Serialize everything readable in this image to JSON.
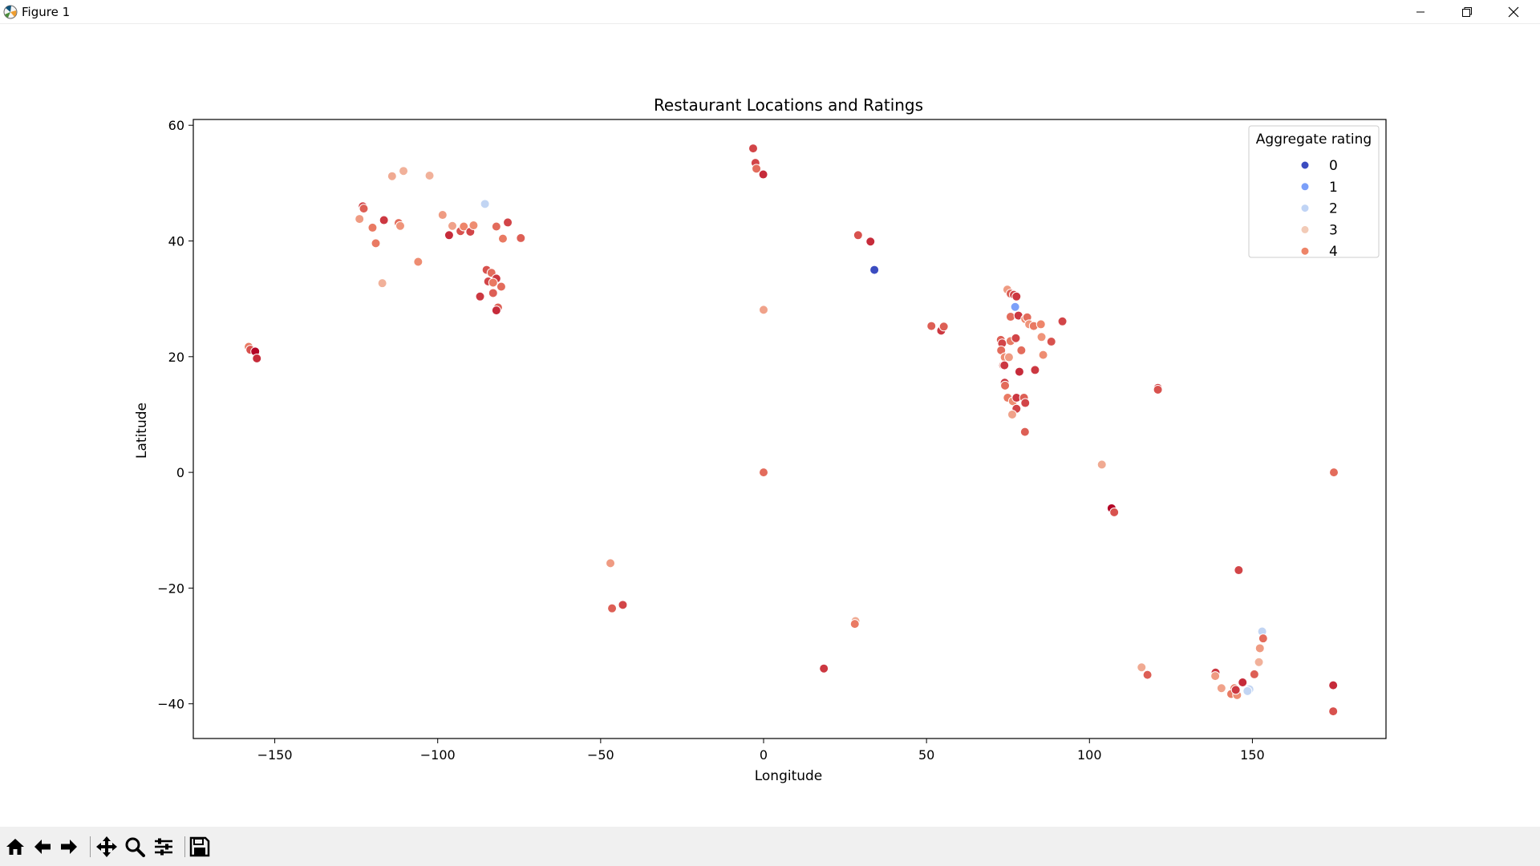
{
  "window": {
    "title": "Figure 1",
    "app_icon": "matplotlib-icon",
    "controls": [
      "minimize-icon",
      "maximize-icon",
      "close-icon"
    ]
  },
  "toolbar": {
    "buttons": [
      "home-icon",
      "back-icon",
      "forward-icon",
      "pan-icon",
      "zoom-icon",
      "configure-subplots-icon",
      "save-icon"
    ]
  },
  "chart_data": {
    "type": "scatter",
    "title": "Restaurant Locations and Ratings",
    "xlabel": "Longitude",
    "ylabel": "Latitude",
    "xlim": [
      -175,
      191
    ],
    "ylim": [
      -46,
      61
    ],
    "xticks": [
      -150,
      -100,
      -50,
      0,
      50,
      100,
      150
    ],
    "yticks": [
      -40,
      -20,
      0,
      20,
      40,
      60
    ],
    "xtick_labels": [
      "−150",
      "−100",
      "−50",
      "0",
      "50",
      "100",
      "150"
    ],
    "ytick_labels": [
      "−40",
      "−20",
      "0",
      "20",
      "40",
      "60"
    ],
    "grid": false,
    "legend": {
      "title": "Aggregate rating",
      "placement": "top-right",
      "entries": [
        {
          "label": "0",
          "color": "#3b4cc0"
        },
        {
          "label": "1",
          "color": "#7b9ff9"
        },
        {
          "label": "2",
          "color": "#c0d4f5"
        },
        {
          "label": "3",
          "color": "#f2cbb7"
        },
        {
          "label": "4",
          "color": "#ee8468"
        }
      ]
    },
    "colormap": "coolwarm",
    "points": [
      {
        "x": -158,
        "y": 21.7,
        "r": 4.0
      },
      {
        "x": -157.5,
        "y": 21.2,
        "r": 4.3
      },
      {
        "x": -156,
        "y": 20.9,
        "r": 4.9
      },
      {
        "x": -155.5,
        "y": 19.7,
        "r": 4.6
      },
      {
        "x": -123,
        "y": 46,
        "r": 4.4
      },
      {
        "x": -122.7,
        "y": 45.6,
        "r": 4.2
      },
      {
        "x": -124,
        "y": 43.8,
        "r": 3.6
      },
      {
        "x": -116.5,
        "y": 43.6,
        "r": 4.5
      },
      {
        "x": -112,
        "y": 43.1,
        "r": 4.1
      },
      {
        "x": -111.5,
        "y": 42.6,
        "r": 3.7
      },
      {
        "x": -120,
        "y": 42.3,
        "r": 4.0
      },
      {
        "x": -119,
        "y": 39.6,
        "r": 4.0
      },
      {
        "x": -114,
        "y": 51.2,
        "r": 3.4
      },
      {
        "x": -110.5,
        "y": 52.1,
        "r": 3.3
      },
      {
        "x": -102.5,
        "y": 51.3,
        "r": 3.3
      },
      {
        "x": -98.5,
        "y": 44.5,
        "r": 3.6
      },
      {
        "x": -106,
        "y": 36.4,
        "r": 3.8
      },
      {
        "x": -117,
        "y": 32.7,
        "r": 3.3
      },
      {
        "x": -96.5,
        "y": 41.0,
        "r": 4.6
      },
      {
        "x": -95.5,
        "y": 42.6,
        "r": 3.5
      },
      {
        "x": -93,
        "y": 41.7,
        "r": 4.3
      },
      {
        "x": -92,
        "y": 42.5,
        "r": 3.9
      },
      {
        "x": -90,
        "y": 41.6,
        "r": 4.4
      },
      {
        "x": -89,
        "y": 42.7,
        "r": 3.8
      },
      {
        "x": -85.5,
        "y": 46.4,
        "r": 2.0
      },
      {
        "x": -82,
        "y": 42.5,
        "r": 4.1
      },
      {
        "x": -78.5,
        "y": 43.2,
        "r": 4.4
      },
      {
        "x": -80,
        "y": 40.4,
        "r": 4.0
      },
      {
        "x": -74.5,
        "y": 40.5,
        "r": 4.2
      },
      {
        "x": -85,
        "y": 35.0,
        "r": 4.3
      },
      {
        "x": -83.5,
        "y": 34.5,
        "r": 4.1
      },
      {
        "x": -82,
        "y": 33.5,
        "r": 4.5
      },
      {
        "x": -84.5,
        "y": 33.0,
        "r": 4.4
      },
      {
        "x": -83,
        "y": 32.8,
        "r": 4.0
      },
      {
        "x": -80.5,
        "y": 32.1,
        "r": 4.1
      },
      {
        "x": -83,
        "y": 31.0,
        "r": 4.2
      },
      {
        "x": -87,
        "y": 30.4,
        "r": 4.5
      },
      {
        "x": -81.5,
        "y": 28.5,
        "r": 4.2
      },
      {
        "x": -82,
        "y": 28.0,
        "r": 4.6
      },
      {
        "x": -3.2,
        "y": 56.0,
        "r": 4.4
      },
      {
        "x": -2.5,
        "y": 53.5,
        "r": 4.4
      },
      {
        "x": -2.2,
        "y": 52.5,
        "r": 4.1
      },
      {
        "x": -0.1,
        "y": 51.5,
        "r": 4.6
      },
      {
        "x": 29,
        "y": 41.0,
        "r": 4.3
      },
      {
        "x": 32.8,
        "y": 39.9,
        "r": 4.6
      },
      {
        "x": 34,
        "y": 35.0,
        "r": 0.0
      },
      {
        "x": 0,
        "y": 28.1,
        "r": 3.5
      },
      {
        "x": 0,
        "y": 0,
        "r": 4.1
      },
      {
        "x": -47,
        "y": -15.7,
        "r": 3.6
      },
      {
        "x": -46.5,
        "y": -23.5,
        "r": 4.2
      },
      {
        "x": -43.2,
        "y": -22.9,
        "r": 4.4
      },
      {
        "x": 28.2,
        "y": -25.7,
        "r": 3.4
      },
      {
        "x": 28,
        "y": -26.2,
        "r": 4.0
      },
      {
        "x": 18.5,
        "y": -33.9,
        "r": 4.5
      },
      {
        "x": 51.5,
        "y": 25.3,
        "r": 4.2
      },
      {
        "x": 54.5,
        "y": 24.5,
        "r": 4.5
      },
      {
        "x": 55.3,
        "y": 25.2,
        "r": 4.2
      },
      {
        "x": 74.8,
        "y": 31.6,
        "r": 3.6
      },
      {
        "x": 75.8,
        "y": 30.9,
        "r": 4.2
      },
      {
        "x": 76.8,
        "y": 30.7,
        "r": 4.4
      },
      {
        "x": 77.6,
        "y": 30.4,
        "r": 4.5
      },
      {
        "x": 77.2,
        "y": 28.6,
        "r": 1.0
      },
      {
        "x": 75.8,
        "y": 26.9,
        "r": 4.1
      },
      {
        "x": 78.2,
        "y": 27.1,
        "r": 4.5
      },
      {
        "x": 80.3,
        "y": 26.5,
        "r": 3.9
      },
      {
        "x": 80.9,
        "y": 26.8,
        "r": 4.1
      },
      {
        "x": 81.5,
        "y": 25.6,
        "r": 3.7
      },
      {
        "x": 82.9,
        "y": 25.3,
        "r": 4.0
      },
      {
        "x": 85.1,
        "y": 25.6,
        "r": 3.9
      },
      {
        "x": 91.7,
        "y": 26.1,
        "r": 4.4
      },
      {
        "x": 85.3,
        "y": 23.4,
        "r": 3.7
      },
      {
        "x": 88.3,
        "y": 22.6,
        "r": 4.3
      },
      {
        "x": 72.8,
        "y": 22.9,
        "r": 4.2
      },
      {
        "x": 73.2,
        "y": 22.3,
        "r": 4.4
      },
      {
        "x": 75.8,
        "y": 22.7,
        "r": 4.0
      },
      {
        "x": 77.4,
        "y": 23.2,
        "r": 4.4
      },
      {
        "x": 72.9,
        "y": 21.1,
        "r": 4.1
      },
      {
        "x": 79.1,
        "y": 21.1,
        "r": 4.1
      },
      {
        "x": 85.8,
        "y": 20.3,
        "r": 3.8
      },
      {
        "x": 74,
        "y": 19.9,
        "r": 3.8
      },
      {
        "x": 75.3,
        "y": 19.9,
        "r": 3.6
      },
      {
        "x": 73.5,
        "y": 18.5,
        "r": 4.2
      },
      {
        "x": 73.9,
        "y": 18.5,
        "r": 4.5
      },
      {
        "x": 78.5,
        "y": 17.4,
        "r": 4.6
      },
      {
        "x": 83.3,
        "y": 17.7,
        "r": 4.5
      },
      {
        "x": 74,
        "y": 15.5,
        "r": 4.5
      },
      {
        "x": 74.1,
        "y": 15.0,
        "r": 4.1
      },
      {
        "x": 74.9,
        "y": 12.9,
        "r": 4.0
      },
      {
        "x": 76.5,
        "y": 12.3,
        "r": 3.8
      },
      {
        "x": 77.6,
        "y": 12.9,
        "r": 4.5
      },
      {
        "x": 79.9,
        "y": 12.9,
        "r": 4.2
      },
      {
        "x": 80.3,
        "y": 12.0,
        "r": 4.4
      },
      {
        "x": 77.6,
        "y": 11.0,
        "r": 4.4
      },
      {
        "x": 76.3,
        "y": 10.0,
        "r": 3.5
      },
      {
        "x": 80.2,
        "y": 7.0,
        "r": 4.2
      },
      {
        "x": 121,
        "y": 14.6,
        "r": 4.4
      },
      {
        "x": 121,
        "y": 14.3,
        "r": 4.3
      },
      {
        "x": 103.8,
        "y": 1.35,
        "r": 3.4
      },
      {
        "x": 106.8,
        "y": -6.2,
        "r": 4.9
      },
      {
        "x": 107.6,
        "y": -6.9,
        "r": 4.3
      },
      {
        "x": 175,
        "y": 0,
        "r": 4.1
      },
      {
        "x": 145.8,
        "y": -16.9,
        "r": 4.4
      },
      {
        "x": 153.0,
        "y": -27.5,
        "r": 2.0
      },
      {
        "x": 153.3,
        "y": -28.7,
        "r": 4.1
      },
      {
        "x": 152.3,
        "y": -30.4,
        "r": 3.6
      },
      {
        "x": 152.0,
        "y": -32.8,
        "r": 3.3
      },
      {
        "x": 150.6,
        "y": -34.9,
        "r": 4.2
      },
      {
        "x": 147.0,
        "y": -36.3,
        "r": 4.6
      },
      {
        "x": 149.1,
        "y": -37.5,
        "r": 2.0
      },
      {
        "x": 148.5,
        "y": -37.8,
        "r": 2.0
      },
      {
        "x": 138.7,
        "y": -34.6,
        "r": 4.5
      },
      {
        "x": 138.6,
        "y": -35.2,
        "r": 3.6
      },
      {
        "x": 140.5,
        "y": -37.3,
        "r": 3.5
      },
      {
        "x": 144.5,
        "y": -37.3,
        "r": 4.0
      },
      {
        "x": 145,
        "y": -37.8,
        "r": 4.3
      },
      {
        "x": 143.5,
        "y": -38.3,
        "r": 4.0
      },
      {
        "x": 145.3,
        "y": -38.5,
        "r": 3.8
      },
      {
        "x": 144.9,
        "y": -37.6,
        "r": 4.5
      },
      {
        "x": 116,
        "y": -33.7,
        "r": 3.4
      },
      {
        "x": 117.8,
        "y": -35.0,
        "r": 4.2
      },
      {
        "x": 174.8,
        "y": -36.8,
        "r": 4.6
      },
      {
        "x": 174.8,
        "y": -41.3,
        "r": 4.3
      }
    ]
  }
}
